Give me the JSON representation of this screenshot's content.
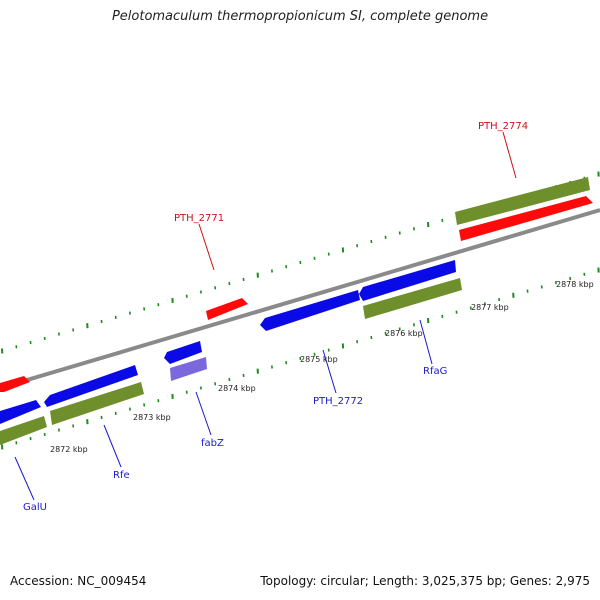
{
  "title": "Pelotomaculum thermopropionicum SI, complete genome",
  "footer": {
    "accession": "Accession: NC_009454",
    "summary": "Topology: circular; Length: 3,025,375 bp; Genes: 2,975"
  },
  "colors": {
    "backbone": "#8a8a8a",
    "forward_cds": "#0a0ae6",
    "reverse_cds": "#ff0a0a",
    "gene_track": "#6f8e2c",
    "pale_cds": "#7b68dd",
    "tick": "#1f8a1f",
    "label_blue": "#1a1acc",
    "label_red": "#cc1111"
  },
  "ticks": {
    "unit": "kbp",
    "labels": [
      "2872 kbp",
      "2873 kbp",
      "2874 kbp",
      "2875 kbp",
      "2876 kbp",
      "2877 kbp",
      "2878 kbp"
    ]
  },
  "genes": [
    {
      "name": "GalU",
      "color": "blue"
    },
    {
      "name": "Rfe",
      "color": "blue"
    },
    {
      "name": "fabZ",
      "color": "blue"
    },
    {
      "name": "PTH_2772",
      "color": "blue"
    },
    {
      "name": "RfaG",
      "color": "blue"
    },
    {
      "name": "PTH_2771",
      "color": "red"
    },
    {
      "name": "PTH_2774",
      "color": "red"
    }
  ]
}
